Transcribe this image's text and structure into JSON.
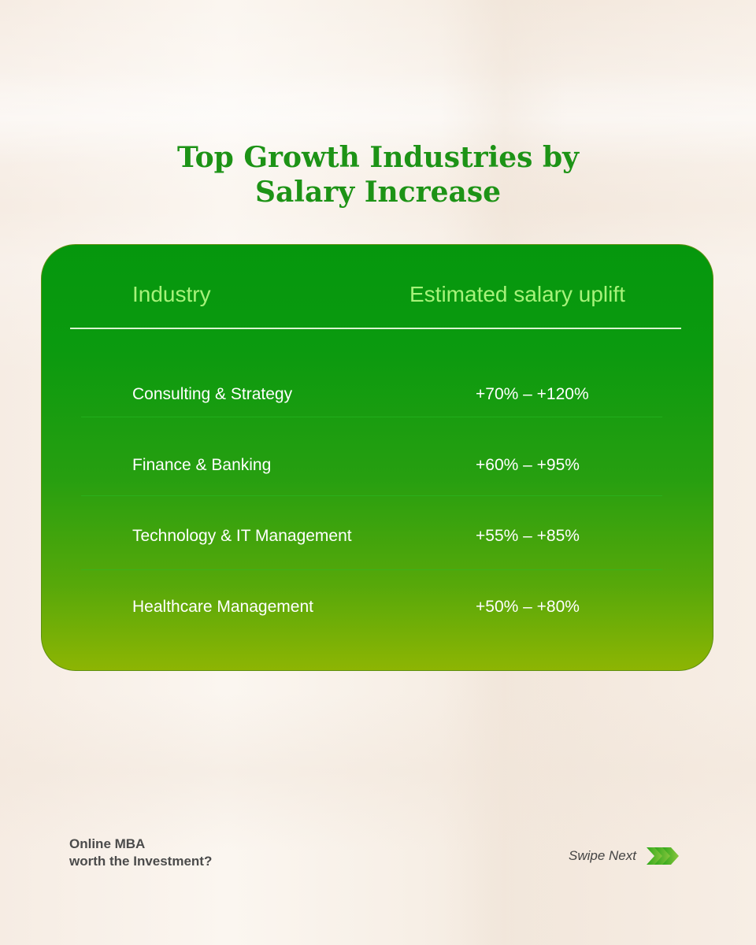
{
  "title": {
    "line1": "Top Growth Industries by",
    "line2": "Salary Increase"
  },
  "table": {
    "headers": {
      "industry": "Industry",
      "uplift": "Estimated salary uplift"
    },
    "rows": [
      {
        "industry": "Consulting & Strategy",
        "uplift": "+70% – +120%"
      },
      {
        "industry": "Finance & Banking",
        "uplift": "+60% – +95%"
      },
      {
        "industry": "Technology & IT Management",
        "uplift": "+55% – +85%"
      },
      {
        "industry": "Healthcare Management",
        "uplift": "+50% – +80%"
      }
    ]
  },
  "footer": {
    "line1": "Online MBA",
    "line2": "worth the Investment?",
    "swipe_label": "Swipe Next",
    "swipe_icon": "triple-chevron-right-icon"
  },
  "colors": {
    "title": "#1d9316",
    "header_text": "#a6f27a",
    "card_top": "#05970d",
    "card_bottom": "#8db503"
  }
}
